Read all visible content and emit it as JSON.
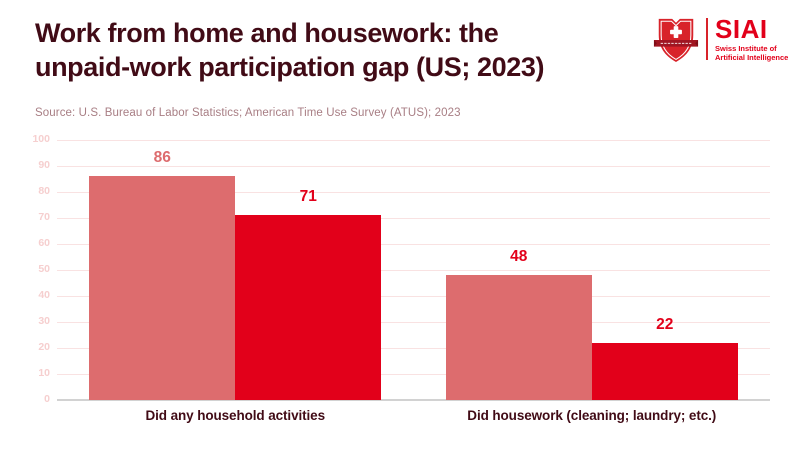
{
  "header": {
    "title_line1": "Work from home and housework: the",
    "title_line2": "unpaid-work participation gap (US; 2023)",
    "source": "Source: U.S. Bureau of Labor Statistics; American Time Use Survey (ATUS); 2023"
  },
  "logo": {
    "name": "SIAI",
    "subtitle_line1": "Swiss Institute of",
    "subtitle_line2": "Artificial Intelligence",
    "shield_red": "#d8232a",
    "ribbon_red": "#a01622",
    "text_red": "#e2001a"
  },
  "colors": {
    "title": "#410b16",
    "source_text": "#a87e84",
    "light_series": "#dd6c6e",
    "dark_series": "#e2001a",
    "gridline": "#f9e2e2",
    "ytick_label": "#f6cfcf",
    "axis_line": "#d2d2d2",
    "category_label": "#410b16",
    "background": "#ffffff"
  },
  "chart_data": {
    "type": "bar",
    "title": "Work from home and housework: the unpaid-work participation gap (US; 2023)",
    "subtitle": "Source: U.S. Bureau of Labor Statistics; American Time Use Survey (ATUS); 2023",
    "categories": [
      "Did any household activities",
      "Did housework (cleaning; laundry; etc.)"
    ],
    "series": [
      {
        "name": "series-light-red",
        "color": "#dd6c6e",
        "values": [
          86,
          48
        ],
        "value_label_colors": [
          "#dd6c6e",
          "#e2001a"
        ]
      },
      {
        "name": "series-dark-red",
        "color": "#e2001a",
        "values": [
          71,
          22
        ],
        "value_label_colors": [
          "#e2001a",
          "#e2001a"
        ]
      }
    ],
    "xlabel": "",
    "ylabel": "",
    "ylim": [
      0,
      100
    ],
    "ytick_step": 10,
    "grid": true,
    "legend": false,
    "value_labels": true
  }
}
